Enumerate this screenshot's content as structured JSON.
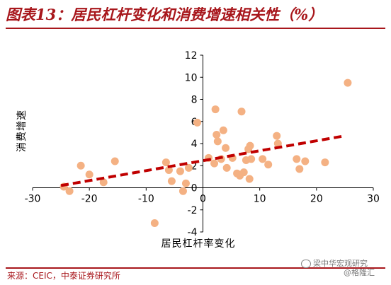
{
  "header": {
    "title": "图表13：居民杠杆变化和消费增速相关性（%）"
  },
  "footer": {
    "source": "来源：CEIC，中泰证券研究所",
    "watermark_line1": "梁中华宏观研究",
    "watermark_line2": "@格隆汇"
  },
  "colors": {
    "title": "#a8171c",
    "points": "#f4b183",
    "trendline": "#c00000"
  },
  "chart_data": {
    "type": "scatter",
    "xlabel": "居民杠杆率变化",
    "ylabel": "消费增速",
    "xlim": [
      -30,
      30
    ],
    "ylim": [
      -4,
      12
    ],
    "xticks": [
      -30,
      -20,
      -10,
      0,
      10,
      20,
      30
    ],
    "yticks": [
      -4,
      -2,
      0,
      2,
      4,
      6,
      8,
      10,
      12
    ],
    "grid": false,
    "legend": "none",
    "points": [
      {
        "x": 25.5,
        "y": 9.5
      },
      {
        "x": -24.5,
        "y": 0.1
      },
      {
        "x": -23.5,
        "y": -0.3
      },
      {
        "x": -21.5,
        "y": 2.0
      },
      {
        "x": -20.0,
        "y": 1.2
      },
      {
        "x": -17.5,
        "y": 0.5
      },
      {
        "x": -15.5,
        "y": 2.4
      },
      {
        "x": -8.5,
        "y": -3.2
      },
      {
        "x": -6.5,
        "y": 2.3
      },
      {
        "x": -6.0,
        "y": 1.6
      },
      {
        "x": -5.5,
        "y": 0.6
      },
      {
        "x": -4.0,
        "y": 1.5
      },
      {
        "x": -3.5,
        "y": -0.3
      },
      {
        "x": -3.0,
        "y": 0.4
      },
      {
        "x": -2.5,
        "y": 1.8
      },
      {
        "x": -1.0,
        "y": 5.9
      },
      {
        "x": 1.0,
        "y": 2.7
      },
      {
        "x": 2.0,
        "y": 2.2
      },
      {
        "x": 2.2,
        "y": 7.1
      },
      {
        "x": 2.4,
        "y": 4.8
      },
      {
        "x": 2.6,
        "y": 4.2
      },
      {
        "x": 3.2,
        "y": 2.6
      },
      {
        "x": 3.6,
        "y": 5.2
      },
      {
        "x": 4.0,
        "y": 3.6
      },
      {
        "x": 4.2,
        "y": 1.8
      },
      {
        "x": 5.2,
        "y": 2.7
      },
      {
        "x": 6.0,
        "y": 1.3
      },
      {
        "x": 6.5,
        "y": 1.1
      },
      {
        "x": 6.8,
        "y": 6.9
      },
      {
        "x": 7.2,
        "y": 1.4
      },
      {
        "x": 7.6,
        "y": 2.5
      },
      {
        "x": 8.0,
        "y": 3.5
      },
      {
        "x": 8.2,
        "y": 0.8
      },
      {
        "x": 8.3,
        "y": 3.8
      },
      {
        "x": 8.5,
        "y": 2.6
      },
      {
        "x": 10.5,
        "y": 2.6
      },
      {
        "x": 11.5,
        "y": 2.1
      },
      {
        "x": 13.0,
        "y": 4.7
      },
      {
        "x": 13.2,
        "y": 4.0
      },
      {
        "x": 16.5,
        "y": 2.6
      },
      {
        "x": 17.0,
        "y": 1.7
      },
      {
        "x": 18.0,
        "y": 2.4
      },
      {
        "x": 21.5,
        "y": 2.3
      }
    ],
    "trendline": {
      "x": [
        -25,
        25
      ],
      "y": [
        0.2,
        4.7
      ],
      "style": "dashed"
    }
  }
}
